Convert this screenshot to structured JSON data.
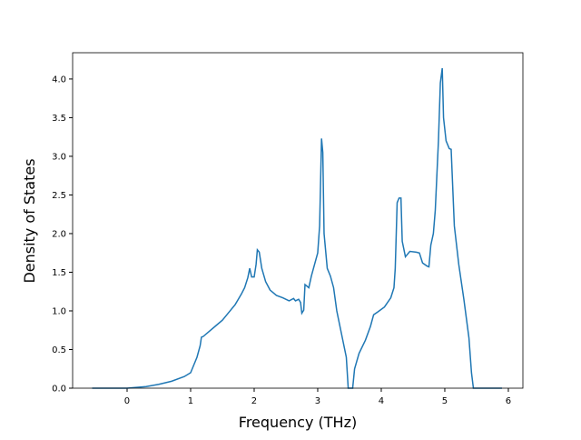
{
  "chart_data": {
    "type": "line",
    "x_label": "Frequency (THz)",
    "y_label": "Density of States",
    "xlim": [
      -0.857,
      6.229
    ],
    "ylim": [
      0,
      4.34
    ],
    "xticks": [
      0,
      1,
      2,
      3,
      4,
      5,
      6
    ],
    "yticks": [
      {
        "value": 0,
        "label": "0.0"
      },
      {
        "value": 0.5,
        "label": "0.5"
      },
      {
        "value": 1,
        "label": "1.0"
      },
      {
        "value": 1.5,
        "label": "1.5"
      },
      {
        "value": 2,
        "label": "2.0"
      },
      {
        "value": 2.5,
        "label": "2.5"
      },
      {
        "value": 3,
        "label": "3.0"
      },
      {
        "value": 3.5,
        "label": "3.5"
      },
      {
        "value": 4,
        "label": "4.0"
      }
    ],
    "x": [
      -0.55,
      0,
      0.3,
      0.5,
      0.7,
      0.9,
      1.0,
      1.1,
      1.15,
      1.17,
      1.2,
      1.3,
      1.4,
      1.5,
      1.6,
      1.7,
      1.75,
      1.8,
      1.85,
      1.9,
      1.93,
      1.96,
      2.0,
      2.03,
      2.05,
      2.08,
      2.12,
      2.18,
      2.25,
      2.35,
      2.45,
      2.55,
      2.62,
      2.65,
      2.7,
      2.73,
      2.75,
      2.78,
      2.8,
      2.86,
      2.9,
      2.95,
      3.0,
      3.03,
      3.06,
      3.08,
      3.1,
      3.15,
      3.2,
      3.25,
      3.3,
      3.35,
      3.4,
      3.45,
      3.48,
      3.55,
      3.58,
      3.65,
      3.75,
      3.83,
      3.88,
      3.95,
      4.05,
      4.15,
      4.2,
      4.22,
      4.25,
      4.28,
      4.31,
      4.33,
      4.38,
      4.45,
      4.55,
      4.6,
      4.65,
      4.72,
      4.75,
      4.78,
      4.82,
      4.85,
      4.9,
      4.93,
      4.96,
      4.98,
      5.02,
      5.07,
      5.1,
      5.15,
      5.22,
      5.3,
      5.38,
      5.42,
      5.45,
      5.9
    ],
    "series": [
      {
        "color": "#1f77b4",
        "values": [
          0,
          0,
          0.02,
          0.05,
          0.09,
          0.15,
          0.2,
          0.4,
          0.55,
          0.66,
          0.67,
          0.74,
          0.81,
          0.88,
          0.98,
          1.08,
          1.15,
          1.22,
          1.3,
          1.43,
          1.55,
          1.44,
          1.44,
          1.6,
          1.79,
          1.76,
          1.55,
          1.38,
          1.27,
          1.2,
          1.17,
          1.13,
          1.16,
          1.13,
          1.15,
          1.11,
          0.97,
          1.01,
          1.34,
          1.3,
          1.45,
          1.6,
          1.75,
          2.1,
          3.23,
          3.05,
          2.0,
          1.55,
          1.45,
          1.3,
          1.0,
          0.8,
          0.6,
          0.4,
          0,
          0,
          0.25,
          0.45,
          0.62,
          0.8,
          0.95,
          0.99,
          1.05,
          1.17,
          1.3,
          1.55,
          2.4,
          2.46,
          2.46,
          1.9,
          1.7,
          1.77,
          1.76,
          1.75,
          1.62,
          1.58,
          1.57,
          1.85,
          2.0,
          2.3,
          3.2,
          3.95,
          4.14,
          3.5,
          3.2,
          3.1,
          3.09,
          2.1,
          1.6,
          1.15,
          0.65,
          0.2,
          0,
          0
        ]
      }
    ]
  }
}
